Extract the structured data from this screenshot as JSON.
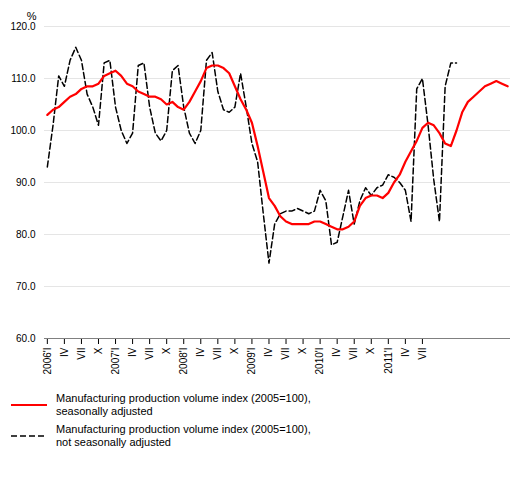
{
  "chart_data": {
    "type": "line",
    "ylabel": "%",
    "categories": [
      "2006'I",
      null,
      null,
      "IV",
      null,
      null,
      "VII",
      null,
      null,
      "X",
      null,
      null,
      "2007'I",
      null,
      null,
      "IV",
      null,
      null,
      "VII",
      null,
      null,
      "X",
      null,
      null,
      "2008'I",
      null,
      null,
      "IV",
      null,
      null,
      "VII",
      null,
      null,
      "X",
      null,
      null,
      "2009'I",
      null,
      null,
      "IV",
      null,
      null,
      "VII",
      null,
      null,
      "X",
      null,
      null,
      "2010'I",
      null,
      null,
      "IV",
      null,
      null,
      "VII",
      null,
      null,
      "X",
      null,
      null,
      "2011'I",
      null,
      null,
      "IV",
      null,
      null,
      "VII",
      null,
      null,
      null,
      null,
      null,
      null,
      null,
      null,
      null,
      null,
      null,
      null,
      null,
      null,
      null
    ],
    "series": [
      {
        "name": "Manufacturing production volume index (2005=100),\nseasonally adjusted",
        "color": "#ff0000",
        "line_style": "solid",
        "values": [
          103.0,
          104.0,
          104.5,
          105.5,
          106.5,
          107.0,
          108.0,
          108.5,
          108.5,
          109.0,
          110.5,
          111.0,
          111.5,
          110.5,
          109.0,
          108.5,
          107.5,
          107.0,
          106.5,
          106.5,
          106.0,
          105.0,
          105.5,
          104.5,
          104.0,
          105.5,
          107.5,
          109.5,
          112.0,
          112.5,
          112.5,
          112.0,
          111.0,
          108.5,
          106.0,
          104.0,
          101.5,
          97.0,
          92.0,
          87.0,
          85.5,
          83.5,
          82.5,
          82.0,
          82.0,
          82.0,
          82.0,
          82.5,
          82.5,
          82.0,
          81.5,
          81.0,
          81.0,
          81.5,
          82.5,
          85.5,
          87.0,
          87.5,
          87.5,
          87.0,
          88.0,
          90.0,
          91.5,
          94.0,
          96.0,
          98.0,
          100.5,
          101.5,
          101.0,
          99.5,
          97.5,
          97.0,
          100.0,
          103.5,
          105.5,
          106.5,
          107.5,
          108.5,
          109.0,
          109.5,
          109.0,
          108.5
        ]
      },
      {
        "name": "Manufacturing production volume index (2005=100),\nnot seasonally adjusted",
        "color": "#000000",
        "line_style": "dashed",
        "values": [
          93.0,
          101.0,
          110.5,
          108.5,
          113.5,
          116.0,
          113.5,
          107.0,
          104.5,
          101.0,
          113.0,
          113.5,
          104.5,
          100.0,
          97.5,
          99.5,
          112.5,
          113.0,
          104.5,
          99.5,
          98.0,
          100.0,
          111.5,
          112.5,
          104.5,
          99.5,
          97.5,
          100.0,
          113.5,
          115.0,
          107.5,
          104.0,
          103.5,
          104.5,
          111.0,
          104.5,
          97.5,
          94.0,
          84.0,
          74.5,
          82.0,
          84.0,
          84.5,
          84.5,
          85.0,
          84.5,
          84.0,
          84.5,
          88.5,
          86.5,
          78.0,
          78.5,
          83.5,
          88.5,
          82.0,
          86.5,
          89.0,
          87.5,
          89.0,
          89.5,
          91.5,
          91.0,
          90.0,
          88.5,
          82.5,
          108.0,
          110.0,
          101.0,
          90.5,
          82.5,
          108.5,
          113.0,
          113.0,
          null,
          null,
          null,
          null,
          null,
          null,
          null,
          null,
          null
        ]
      }
    ],
    "ylim": [
      60.0,
      120.0
    ],
    "yticks": [
      {
        "value": 60,
        "label": "60.0"
      },
      {
        "value": 70,
        "label": "70.0"
      },
      {
        "value": 80,
        "label": "80.0"
      },
      {
        "value": 90,
        "label": "90.0"
      },
      {
        "value": 100,
        "label": "100.0"
      },
      {
        "value": 110,
        "label": "110.0"
      },
      {
        "value": 120,
        "label": "120.0"
      }
    ],
    "grid": true,
    "legend": "bottom"
  }
}
